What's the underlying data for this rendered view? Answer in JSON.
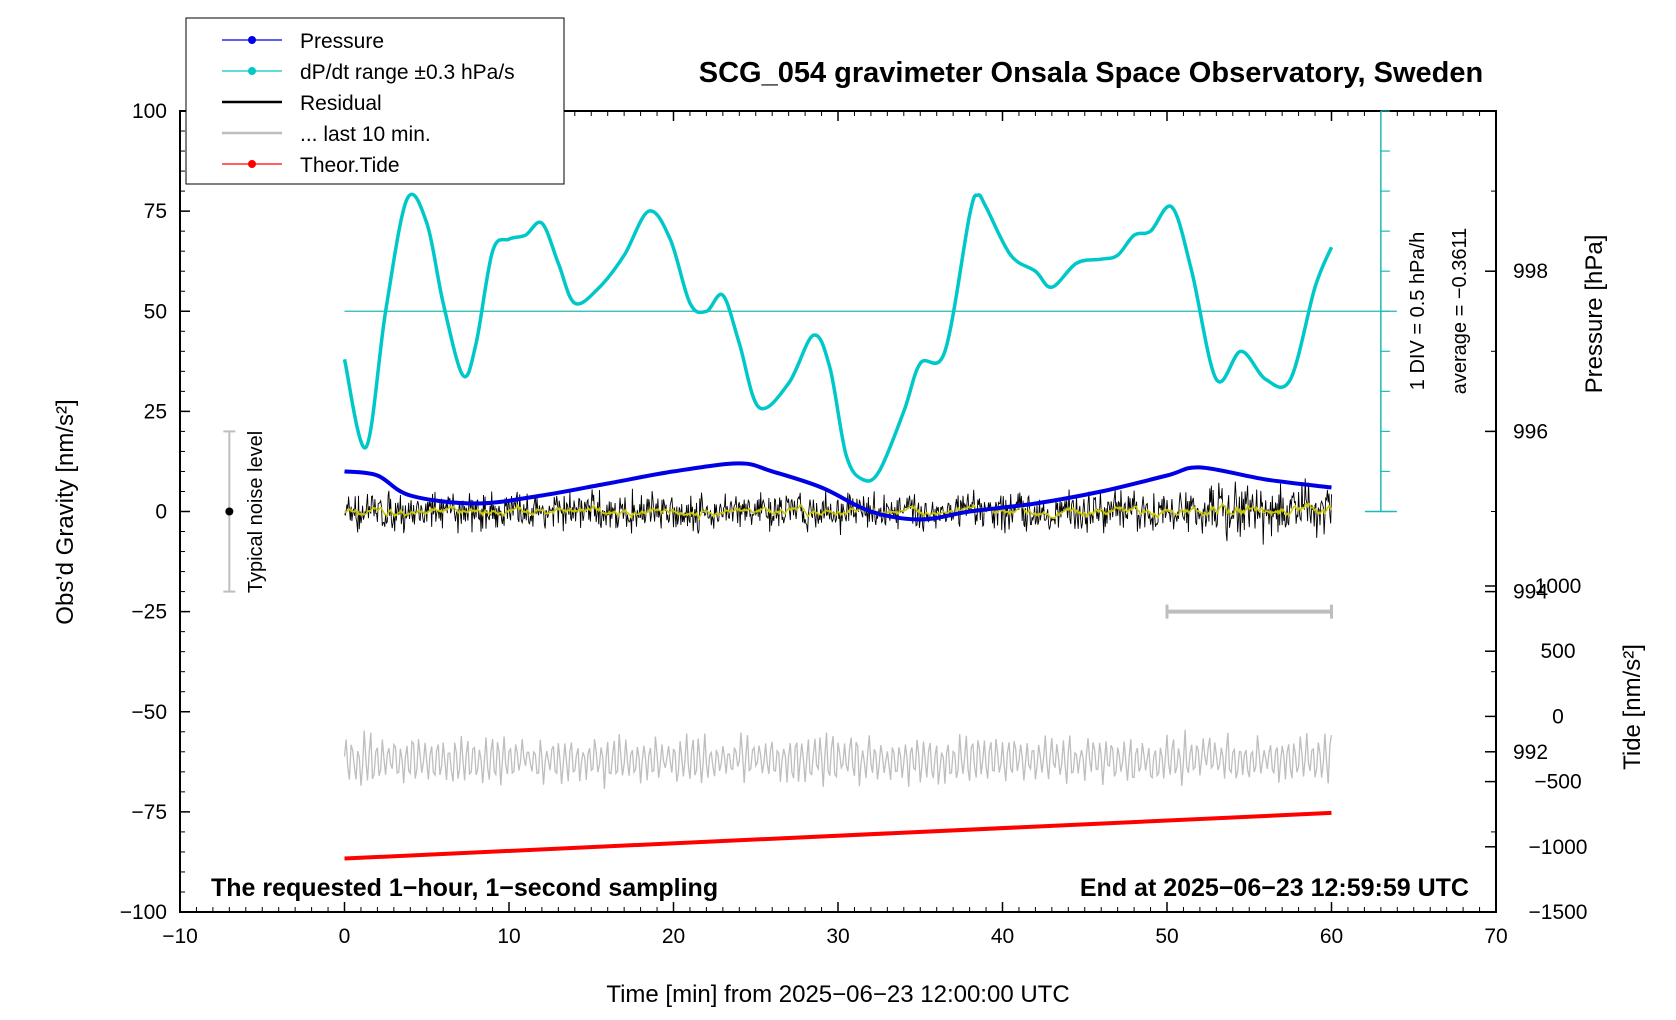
{
  "chart_data": {
    "type": "line",
    "title": "SCG_054 gravimeter Onsala Space Observatory, Sweden",
    "xlabel": "Time [min] from 2025−06−23 12:00:00 UTC",
    "ylabel": "Obs’d Gravity [nm/s²]",
    "xlim": [
      -10,
      70
    ],
    "ylim": [
      -100,
      100
    ],
    "x_ticks": [
      "−10",
      "0",
      "10",
      "20",
      "30",
      "40",
      "50",
      "60",
      "70"
    ],
    "y_ticks": [
      "100",
      "75",
      "50",
      "25",
      "0",
      "−25",
      "−50",
      "−75",
      "−100"
    ],
    "pressure_axis": {
      "label": "Pressure [hPa]",
      "ticks": [
        "998",
        "996",
        "994",
        "992"
      ],
      "range": [
        990,
        1000
      ]
    },
    "tide_axis": {
      "label": "Tide [nm/s²]",
      "ticks": [
        "1000",
        "500",
        "0",
        "−500",
        "−1000",
        "−1500"
      ],
      "range": [
        -1500,
        1000
      ]
    },
    "legend": {
      "position": "top-left",
      "entries": [
        {
          "label": "Pressure",
          "color": "#0000e6",
          "marker": "dot"
        },
        {
          "label": "dP/dt range ±0.3 hPa/s",
          "color": "#00c8c8",
          "marker": "dot"
        },
        {
          "label": "Residual",
          "color": "#000000",
          "marker": "none"
        },
        {
          "label": "... last 10 min.",
          "color": "#bebebe",
          "marker": "none"
        },
        {
          "label": "Theor.Tide",
          "color": "#ff0000",
          "marker": "dot"
        }
      ]
    },
    "noise_level": {
      "label": "Typical noise level",
      "x": -7,
      "center": 0,
      "range": [
        -20,
        20
      ]
    },
    "dpdt_scale": {
      "label": "1 DIV = 0.5 hPa/h",
      "average": "average = −0.3611",
      "x": 63
    },
    "last10_bar": {
      "x_range": [
        50,
        60
      ],
      "y": -25
    },
    "footer_left": "The requested 1−hour, 1−second sampling",
    "footer_right": "End at 2025−06−23 12:59:59 UTC",
    "series": [
      {
        "name": "Pressure",
        "color": "#0000e6",
        "axis": "pressure",
        "points": [
          [
            0,
            995.5
          ],
          [
            2,
            995.45
          ],
          [
            4,
            995.2
          ],
          [
            8,
            995.1
          ],
          [
            12,
            995.2
          ],
          [
            16,
            995.35
          ],
          [
            20,
            995.5
          ],
          [
            24,
            995.6
          ],
          [
            26,
            995.5
          ],
          [
            29,
            995.3
          ],
          [
            32,
            995.0
          ],
          [
            35,
            994.9
          ],
          [
            38,
            995.0
          ],
          [
            42,
            995.1
          ],
          [
            46,
            995.25
          ],
          [
            50,
            995.45
          ],
          [
            52,
            995.55
          ],
          [
            56,
            995.4
          ],
          [
            60,
            995.3
          ]
        ]
      },
      {
        "name": "dP/dt range ±0.3 hPa/s",
        "color": "#00c8c8",
        "axis": "gravity",
        "points": [
          [
            0,
            38
          ],
          [
            1.3,
            16
          ],
          [
            2.5,
            50
          ],
          [
            3.8,
            78
          ],
          [
            5,
            72
          ],
          [
            6,
            52
          ],
          [
            7.2,
            34
          ],
          [
            8,
            42
          ],
          [
            9,
            65
          ],
          [
            10,
            68
          ],
          [
            11,
            69
          ],
          [
            12,
            72
          ],
          [
            13,
            62
          ],
          [
            14,
            52
          ],
          [
            15.5,
            56
          ],
          [
            17,
            64
          ],
          [
            18.5,
            75
          ],
          [
            19.8,
            68
          ],
          [
            21,
            52
          ],
          [
            22,
            50
          ],
          [
            23,
            54
          ],
          [
            24,
            42
          ],
          [
            25.2,
            26
          ],
          [
            27,
            32
          ],
          [
            28.5,
            44
          ],
          [
            29.5,
            36
          ],
          [
            30.5,
            14
          ],
          [
            31.5,
            8
          ],
          [
            32.5,
            10
          ],
          [
            34,
            25
          ],
          [
            35,
            37
          ],
          [
            36.5,
            40
          ],
          [
            38,
            74
          ],
          [
            38.5,
            79
          ],
          [
            39,
            76
          ],
          [
            40.5,
            64
          ],
          [
            42,
            60
          ],
          [
            43,
            56
          ],
          [
            44.5,
            62
          ],
          [
            46,
            63
          ],
          [
            47,
            64
          ],
          [
            48,
            69
          ],
          [
            49,
            70
          ],
          [
            50.3,
            76
          ],
          [
            51.5,
            60
          ],
          [
            53,
            33
          ],
          [
            54.5,
            40
          ],
          [
            56,
            33
          ],
          [
            57.5,
            33
          ],
          [
            59,
            56
          ],
          [
            60,
            66
          ]
        ]
      },
      {
        "name": "Residual",
        "color": "#000000",
        "axis": "gravity",
        "center": 0,
        "amplitude": 5
      },
      {
        "name": "... last 10 min.",
        "color": "#bebebe",
        "axis": "gravity",
        "center": -62,
        "amplitude": 5
      },
      {
        "name": "Theor.Tide",
        "color": "#ff0000",
        "axis": "tide",
        "points": [
          [
            0,
            -1090
          ],
          [
            60,
            -740
          ]
        ]
      }
    ]
  }
}
